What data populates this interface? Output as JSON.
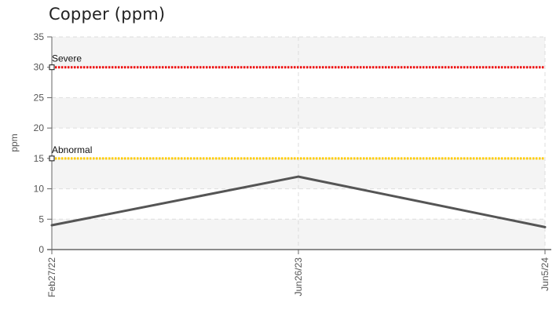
{
  "chart_data": {
    "type": "line",
    "title": "Copper (ppm)",
    "ylabel": "ppm",
    "xlabel": "",
    "ylim": [
      0,
      35
    ],
    "yticks": [
      0,
      5,
      10,
      15,
      20,
      25,
      30,
      35
    ],
    "categories": [
      "Feb27/22",
      "Jun26/23",
      "Jun5/24"
    ],
    "series": [
      {
        "values": [
          4,
          12,
          3.7
        ],
        "color": "#555555"
      }
    ],
    "reference_lines": [
      {
        "name": "Severe",
        "value": 30,
        "color": "#ee1111"
      },
      {
        "name": "Abnormal",
        "value": 15,
        "color": "#ffcc00"
      }
    ],
    "grid": true,
    "bands": "alternating light gray"
  }
}
